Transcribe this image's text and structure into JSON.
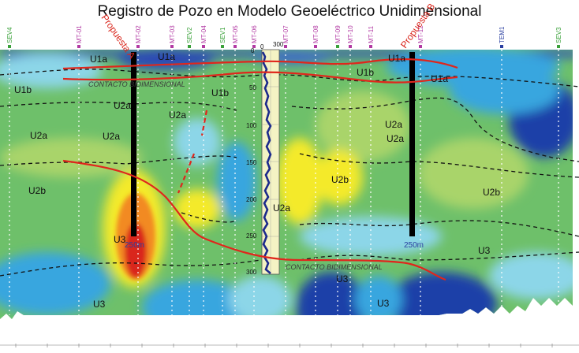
{
  "title": "Registro de Pozo en Modelo Geoeléctrico Unidimensional",
  "colors": {
    "low_resistivity": "#1e3fa8",
    "mid_blue": "#39a6df",
    "cyan": "#8cd6e8",
    "green": "#6ec06a",
    "light_green": "#a9d46b",
    "yellow": "#f4ea2a",
    "orange": "#f28a20",
    "red": "#d9261c",
    "contact_line": "#e0261c",
    "well_log": "#1c2a8c",
    "well_bar": "#000000",
    "sev_label": "#3aa13a",
    "mt_label": "#b23aa3",
    "tem_label": "#2a3fa0",
    "proposal_label": "#d9261c"
  },
  "stations": {
    "sev": [
      "SEV4",
      "SEV2",
      "SEV1",
      "SEV3"
    ],
    "mt": [
      "MT-01",
      "MT-02",
      "MT-03",
      "MT-04",
      "MT-05",
      "MT-06",
      "MT-07",
      "MT-08",
      "MT-09",
      "MT-10",
      "MT-11",
      "MT-12"
    ],
    "tem": [
      "TEM1"
    ]
  },
  "proposals": {
    "a": {
      "label": "Propuesta A",
      "depth_label": "250m"
    },
    "b": {
      "label": "Propuesta B",
      "depth_label": "250m"
    }
  },
  "units": {
    "u1a": "U1a",
    "u1b": "U1b",
    "u2a": "U2a",
    "u2b": "U2b",
    "u3": "U3"
  },
  "contacts": {
    "upper": "CONTACTO BIDIMENSIONAL",
    "lower": "CONTACTO BIDIMENSIONAL"
  },
  "well_log": {
    "depth_ticks": [
      "0",
      "50",
      "100",
      "150",
      "200",
      "250",
      "300"
    ],
    "value_axis": [
      "0",
      "300"
    ]
  }
}
